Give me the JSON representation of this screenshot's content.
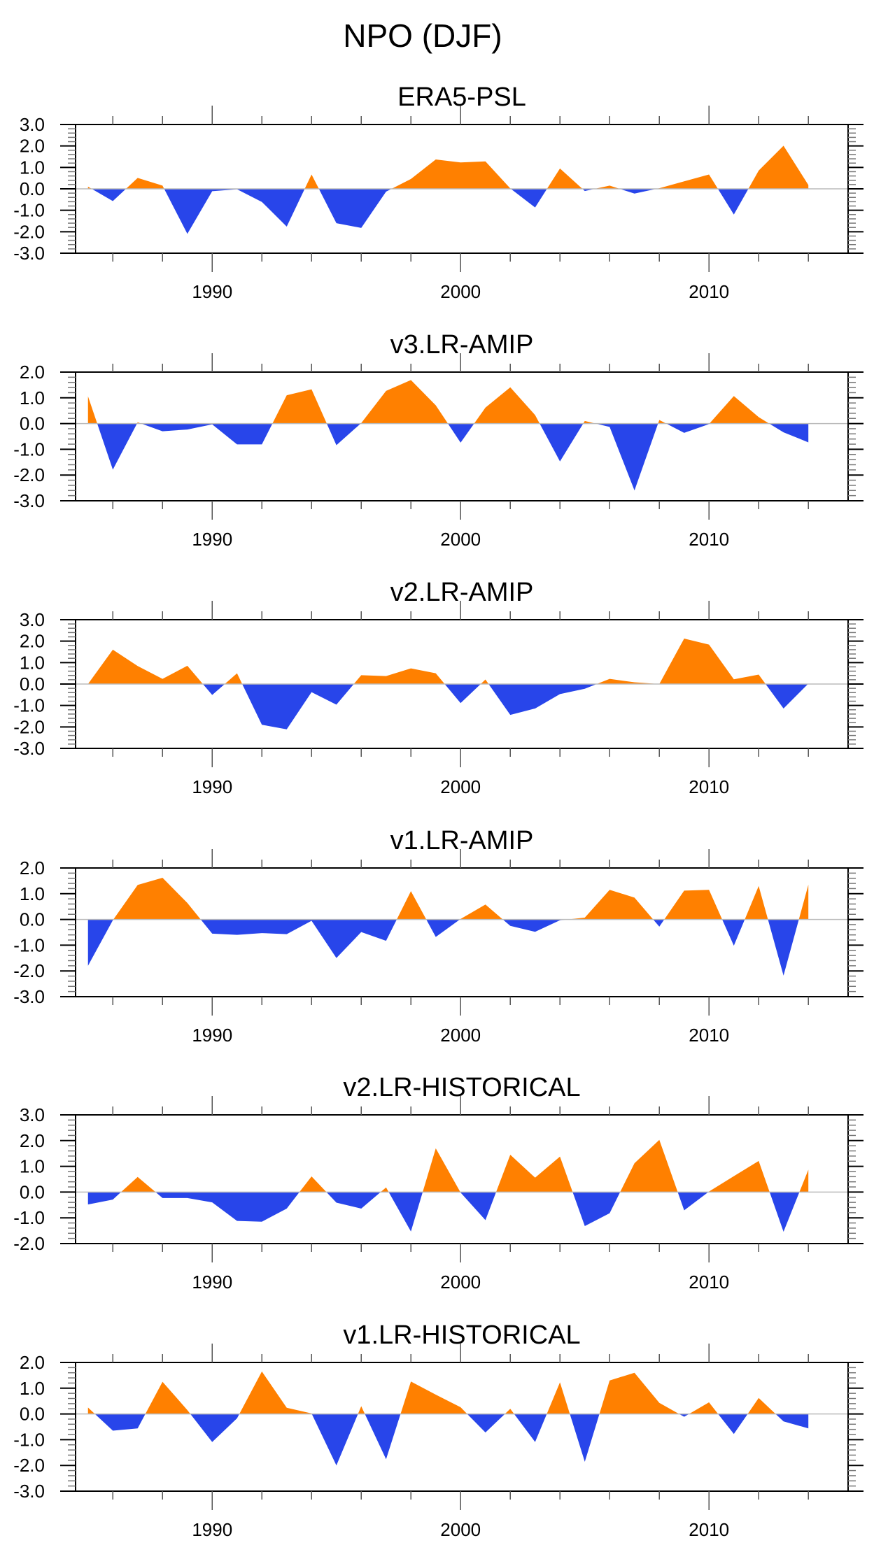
{
  "chart_data": {
    "type": "area",
    "title": "NPO (DJF)",
    "colors": {
      "positive": "#FF8000",
      "negative": "#2845EA",
      "zero_line": "#BBBBBB"
    },
    "x": [
      1985,
      1986,
      1987,
      1988,
      1989,
      1990,
      1991,
      1992,
      1993,
      1994,
      1995,
      1996,
      1997,
      1998,
      1999,
      2000,
      2001,
      2002,
      2003,
      2004,
      2005,
      2006,
      2007,
      2008,
      2009,
      2010,
      2011,
      2012,
      2013,
      2014
    ],
    "xlim": [
      1984.5,
      2015.6
    ],
    "x_tick_labels": [
      "1990",
      "2000",
      "2010"
    ],
    "panels": [
      {
        "title": "ERA5-PSL",
        "ylim": [
          -3,
          3
        ],
        "y_tick_labels": [
          "3.0",
          "2.0",
          "1.0",
          "0.0",
          "-1.0",
          "-2.0",
          "-3.0"
        ],
        "values": [
          0.1,
          -0.57,
          0.51,
          0.15,
          -2.1,
          -0.11,
          -0.02,
          -0.61,
          -1.76,
          0.67,
          -1.6,
          -1.82,
          -0.13,
          0.46,
          1.37,
          1.23,
          1.28,
          0.02,
          -0.87,
          0.95,
          -0.1,
          0.15,
          -0.22,
          0.03,
          0.35,
          0.67,
          -1.2,
          0.85,
          2.01,
          0.18
        ]
      },
      {
        "title": "v3.LR-AMIP",
        "ylim": [
          -3,
          2
        ],
        "y_tick_labels": [
          "2.0",
          "1.0",
          "0.0",
          "-1.0",
          "-2.0",
          "-3.0"
        ],
        "values": [
          1.06,
          -1.79,
          0.05,
          -0.3,
          -0.23,
          -0.03,
          -0.81,
          -0.81,
          1.1,
          1.33,
          -0.84,
          0.02,
          1.27,
          1.69,
          0.71,
          -0.74,
          0.62,
          1.41,
          0.33,
          -1.47,
          0.1,
          -0.13,
          -2.6,
          0.14,
          -0.36,
          -0.02,
          1.07,
          0.25,
          -0.34,
          -0.73
        ]
      },
      {
        "title": "v2.LR-AMIP",
        "ylim": [
          -3,
          3
        ],
        "y_tick_labels": [
          "3.0",
          "2.0",
          "1.0",
          "0.0",
          "-1.0",
          "-2.0",
          "-3.0"
        ],
        "values": [
          0.0,
          1.6,
          0.84,
          0.24,
          0.85,
          -0.51,
          0.5,
          -1.9,
          -2.11,
          -0.38,
          -0.96,
          0.41,
          0.37,
          0.73,
          0.5,
          -0.89,
          0.21,
          -1.44,
          -1.14,
          -0.47,
          -0.22,
          0.24,
          0.08,
          0.0,
          2.12,
          1.84,
          0.22,
          0.44,
          -1.14,
          0.02
        ]
      },
      {
        "title": "v1.LR-AMIP",
        "ylim": [
          -3,
          2
        ],
        "y_tick_labels": [
          "2.0",
          "1.0",
          "0.0",
          "-1.0",
          "-2.0",
          "-3.0"
        ],
        "values": [
          -1.8,
          -0.03,
          1.34,
          1.62,
          0.64,
          -0.55,
          -0.6,
          -0.53,
          -0.57,
          -0.05,
          -1.5,
          -0.49,
          -0.83,
          1.1,
          -0.68,
          0.02,
          0.58,
          -0.25,
          -0.48,
          -0.03,
          0.07,
          1.15,
          0.85,
          -0.28,
          1.12,
          1.15,
          -1.02,
          1.3,
          -2.18,
          1.35
        ]
      },
      {
        "title": "v2.LR-HISTORICAL",
        "ylim": [
          -2,
          3
        ],
        "y_tick_labels": [
          "3.0",
          "2.0",
          "1.0",
          "0.0",
          "-1.0",
          "-2.0"
        ],
        "values": [
          -0.48,
          -0.29,
          0.59,
          -0.23,
          -0.23,
          -0.4,
          -1.12,
          -1.15,
          -0.64,
          0.61,
          -0.41,
          -0.64,
          0.18,
          -1.53,
          1.7,
          -0.02,
          -1.09,
          1.45,
          0.56,
          1.38,
          -1.32,
          -0.82,
          1.12,
          2.03,
          -0.71,
          0.02,
          0.62,
          1.21,
          -1.54,
          0.87
        ]
      },
      {
        "title": "v1.LR-HISTORICAL",
        "ylim": [
          -3,
          2
        ],
        "y_tick_labels": [
          "2.0",
          "1.0",
          "0.0",
          "-1.0",
          "-2.0",
          "-3.0"
        ],
        "values": [
          0.25,
          -0.65,
          -0.56,
          1.25,
          0.15,
          -1.09,
          -0.17,
          1.65,
          0.24,
          0.02,
          -2.0,
          0.3,
          -1.76,
          1.26,
          0.75,
          0.26,
          -0.72,
          0.2,
          -1.09,
          1.23,
          -1.86,
          1.3,
          1.6,
          0.43,
          -0.11,
          0.45,
          -0.78,
          0.62,
          -0.29,
          -0.56
        ]
      }
    ]
  }
}
